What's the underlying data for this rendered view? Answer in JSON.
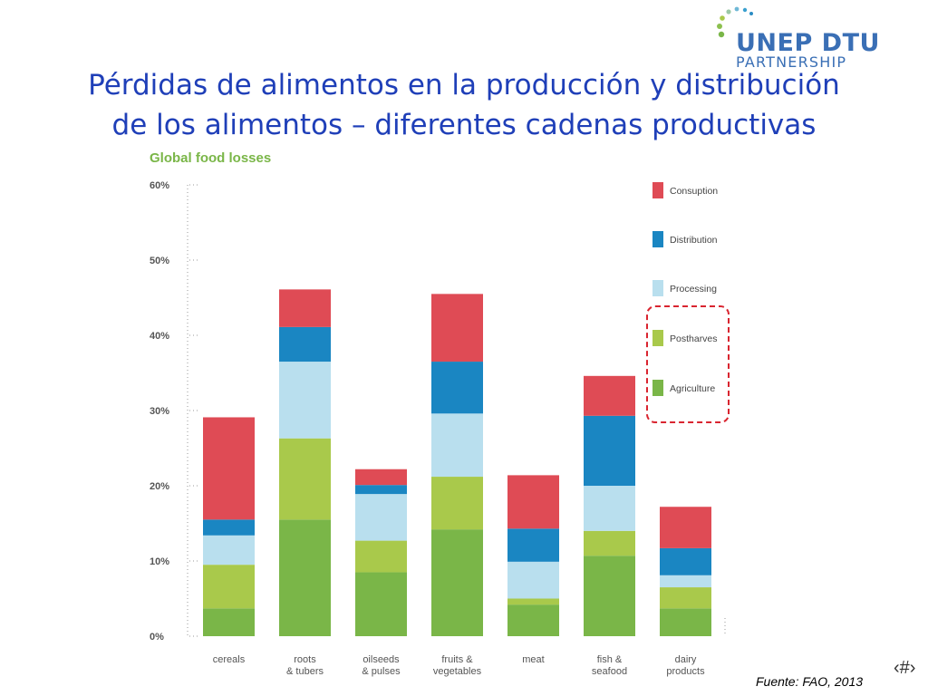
{
  "slide": {
    "title_line1": "Pérdidas  de alimentos en la producción y distribución",
    "title_line2": "de los alimentos – diferentes cadenas productivas",
    "logo_main": "UNEP DTU",
    "logo_sub": "PARTNERSHIP",
    "source": "Fuente: FAO, 2013",
    "page_number": "‹#›"
  },
  "colors": {
    "title": "#1f3fb8",
    "Agriculture": "#7ab648",
    "Postharves": "#a9c94b",
    "Processing": "#b9dfee",
    "Distribution": "#1a86c2",
    "Consuption": "#df4b55",
    "highlight": "#d92530"
  },
  "chart_data": {
    "type": "bar",
    "stacked": true,
    "title": "Global food losses",
    "xlabel": "",
    "ylabel": "",
    "ylim": [
      0,
      60
    ],
    "yticks": [
      "0%",
      "10%",
      "20%",
      "30%",
      "40%",
      "50%",
      "60%"
    ],
    "categories": [
      "cereals",
      "roots\n& tubers",
      "oilseeds\n& pulses",
      "fruits &\nvegetables",
      "meat",
      "fish &\nseafood",
      "dairy\nproducts"
    ],
    "series": [
      {
        "name": "Agriculture",
        "values": [
          3.7,
          15.5,
          8.5,
          14.2,
          4.2,
          10.7,
          3.7
        ]
      },
      {
        "name": "Postharves",
        "values": [
          5.8,
          10.8,
          4.2,
          7.0,
          0.8,
          3.3,
          2.8
        ]
      },
      {
        "name": "Processing",
        "values": [
          3.9,
          10.2,
          6.2,
          8.4,
          4.9,
          6.0,
          1.6
        ]
      },
      {
        "name": "Distribution",
        "values": [
          2.1,
          4.6,
          1.2,
          6.9,
          4.4,
          9.3,
          3.6
        ]
      },
      {
        "name": "Consuption",
        "values": [
          13.6,
          5.0,
          2.1,
          9.0,
          7.1,
          5.3,
          5.5
        ]
      }
    ],
    "legend": [
      "Consuption",
      "Distribution",
      "Processing",
      "Postharves",
      "Agriculture"
    ],
    "legend_position": "right"
  }
}
